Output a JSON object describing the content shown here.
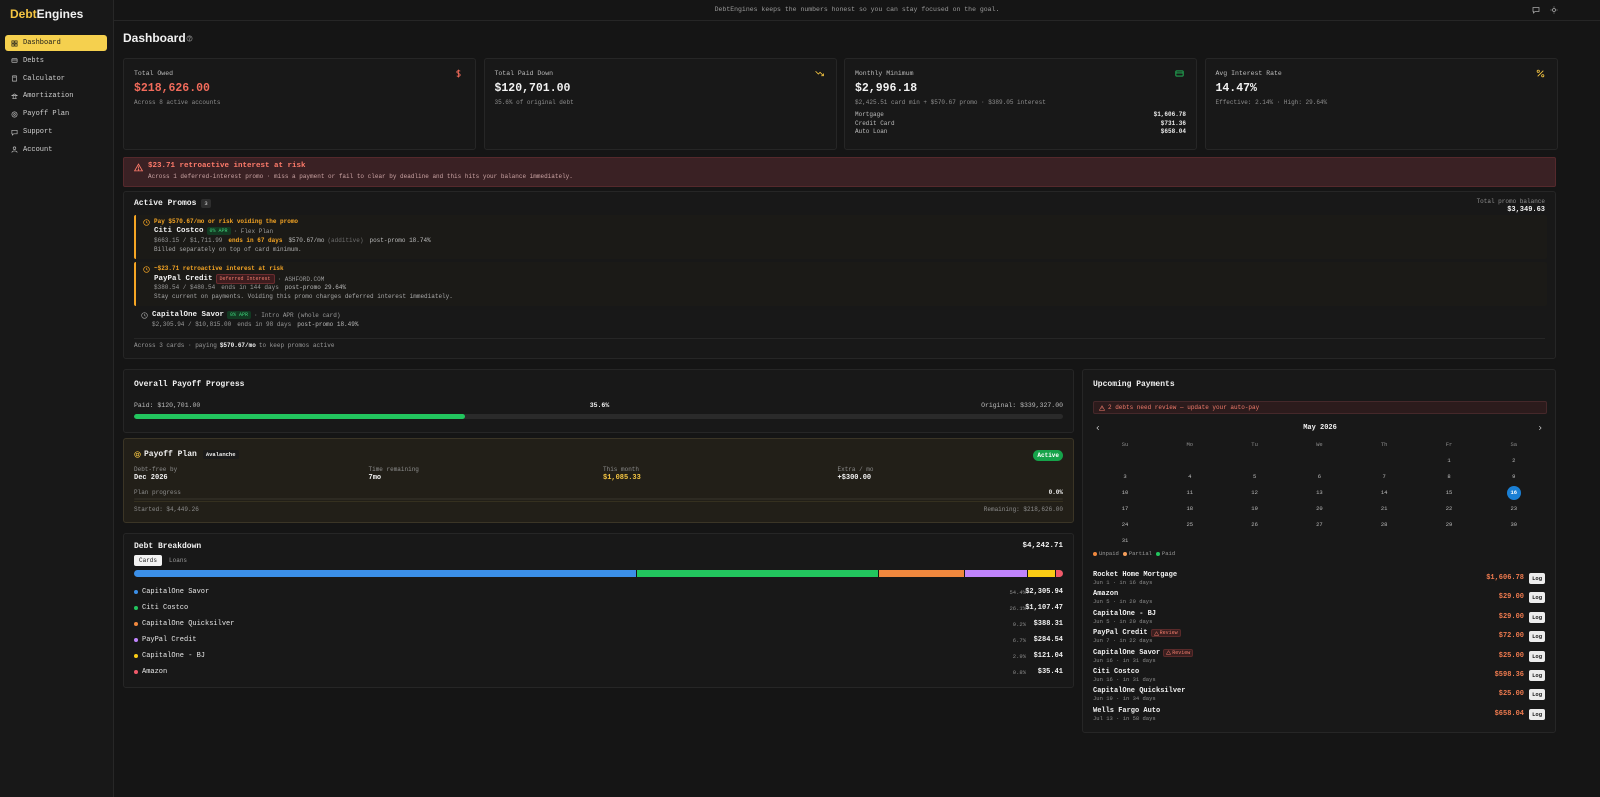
{
  "brand": {
    "first": "Debt",
    "second": "Engines"
  },
  "nav": [
    "Dashboard",
    "Debts",
    "Calculator",
    "Amortization",
    "Payoff Plan",
    "Support",
    "Account"
  ],
  "topbar": "DebtEngines keeps the numbers honest so you can stay focused on the goal.",
  "page_title": "Dashboard",
  "stats": [
    {
      "label": "Total Owed",
      "value": "$218,626.00",
      "sub": "Across 8 active accounts",
      "color": "#f26b5b",
      "icon_color": "#f26b5b"
    },
    {
      "label": "Total Paid Down",
      "value": "$120,701.00",
      "sub": "35.6% of original debt",
      "color": "#f2f2f2",
      "icon_color": "#f5c542"
    },
    {
      "label": "Monthly Minimum",
      "value": "$2,996.18",
      "sub": "$2,425.51 card min + $570.67 promo · $389.05 interest",
      "color": "#f2f2f2",
      "icon_color": "#22c55e",
      "rows": [
        [
          "Mortgage",
          "$1,606.78"
        ],
        [
          "Credit Card",
          "$731.36"
        ],
        [
          "Auto Loan",
          "$658.04"
        ]
      ]
    },
    {
      "label": "Avg Interest Rate",
      "value": "14.47%",
      "sub": "Effective: 2.14% · High: 29.64%",
      "color": "#f2f2f2",
      "icon_color": "#f5c542"
    }
  ],
  "alert": {
    "title": "$23.71 retroactive interest at risk",
    "text": "Across 1 deferred-interest promo · miss a payment or fail to clear by deadline and this hits your balance immediately."
  },
  "promos": {
    "title": "Active Promos",
    "count": 3,
    "balance_label": "Total promo balance",
    "balance": "$3,349.63",
    "items": [
      {
        "warning": "Pay $570.67/mo or risk voiding the promo",
        "name": "Citi Costco",
        "badge": "0% APR",
        "badge_kind": "green",
        "type": "· Flex Plan",
        "balance": "$663.15 / $1,711.99",
        "ends": "ends in 67 days",
        "payment": "$570.67/mo",
        "payment_note": "(additive)",
        "post": "post-promo 18.74%",
        "note": "Billed separately on top of card minimum."
      },
      {
        "warning": "~$23.71 retroactive interest at risk",
        "name": "PayPal Credit",
        "badge": "Deferred Interest",
        "badge_kind": "red",
        "type": "· ASHFORD.COM",
        "balance": "$380.54 / $480.54",
        "ends": "ends in 144 days",
        "post": "post-promo 29.64%",
        "note": "Stay current on payments. Voiding this promo charges deferred interest immediately."
      },
      {
        "name": "CapitalOne Savor",
        "badge": "0% APR",
        "badge_kind": "green",
        "type": "· Intro APR (whole card)",
        "balance": "$2,305.94 / $10,815.00",
        "ends": "ends in 98 days",
        "post": "post-promo 18.49%"
      }
    ],
    "footer": {
      "before": "Across 3 cards · paying",
      "amount": "$570.67/mo",
      "after": "to keep promos active"
    }
  },
  "progress": {
    "title": "Overall Payoff Progress",
    "paid": "Paid: $120,701.00",
    "percent": {
      "value": 35.6,
      "label": "35.6%"
    },
    "original": "Original: $339,327.00"
  },
  "plan": {
    "title": "Payoff Plan",
    "strategy": "Avalanche",
    "status": "Active",
    "fields": [
      {
        "label": "Debt-free by",
        "value": "Dec 2026",
        "color": "#f2f2f2"
      },
      {
        "label": "Time remaining",
        "value": "7mo",
        "color": "#f2f2f2"
      },
      {
        "label": "This month",
        "value": "$1,085.33",
        "color": "#f5c542"
      },
      {
        "label": "Extra / mo",
        "value": "+$300.00",
        "color": "#f2f2f2"
      }
    ],
    "progress_label": "Plan progress",
    "progress": {
      "value": 0,
      "label": "0.0%"
    },
    "started": "Started: $4,449.26",
    "remaining": "Remaining: $218,626.00"
  },
  "breakdown": {
    "title": "Debt Breakdown",
    "total": "$4,242.71",
    "tabs": [
      "Cards",
      "Loans"
    ],
    "active_tab": "Cards",
    "items": [
      {
        "name": "CapitalOne Savor",
        "color": "#3b8fe8",
        "share": 54.4,
        "share_label": "54.4%",
        "amount": "$2,305.94"
      },
      {
        "name": "Citi Costco",
        "color": "#22c55e",
        "share": 26.1,
        "share_label": "26.1%",
        "amount": "$1,107.47"
      },
      {
        "name": "CapitalOne Quicksilver",
        "color": "#f0883e",
        "share": 9.2,
        "share_label": "9.2%",
        "amount": "$388.31"
      },
      {
        "name": "PayPal Credit",
        "color": "#c084fc",
        "share": 6.7,
        "share_label": "6.7%",
        "amount": "$284.54"
      },
      {
        "name": "CapitalOne - BJ",
        "color": "#facc15",
        "share": 2.9,
        "share_label": "2.9%",
        "amount": "$121.04"
      },
      {
        "name": "Amazon",
        "color": "#f05a6a",
        "share": 0.8,
        "share_label": "0.8%",
        "amount": "$35.41"
      }
    ]
  },
  "upcoming": {
    "title": "Upcoming Payments",
    "warning": "2 debts need review — update your auto-pay",
    "month": "May 2026",
    "weekdays": [
      "Su",
      "Mo",
      "Tu",
      "We",
      "Th",
      "Fr",
      "Sa"
    ],
    "weeks": [
      [
        null,
        null,
        null,
        null,
        null,
        1,
        2
      ],
      [
        3,
        4,
        5,
        6,
        7,
        8,
        9
      ],
      [
        10,
        11,
        12,
        13,
        14,
        15,
        16
      ],
      [
        17,
        18,
        19,
        20,
        21,
        22,
        23
      ],
      [
        24,
        25,
        26,
        27,
        28,
        29,
        30
      ],
      [
        31,
        null,
        null,
        null,
        null,
        null,
        null
      ]
    ],
    "today": 16,
    "legend": [
      {
        "name": "Unpaid",
        "color": "#f0883e"
      },
      {
        "name": "Partial",
        "color": "#f59e5b"
      },
      {
        "name": "Paid",
        "color": "#22c55e"
      }
    ],
    "review_label": "Review",
    "log_label": "Log",
    "payments": [
      {
        "name": "Rocket Home Mortgage",
        "due": "Jun 1 · in 16 days",
        "amount": "$1,606.78",
        "review": false
      },
      {
        "name": "Amazon",
        "due": "Jun 5 · in 20 days",
        "amount": "$29.00",
        "review": false
      },
      {
        "name": "CapitalOne - BJ",
        "due": "Jun 5 · in 20 days",
        "amount": "$29.00",
        "review": false
      },
      {
        "name": "PayPal Credit",
        "due": "Jun 7 · in 22 days",
        "amount": "$72.00",
        "review": true
      },
      {
        "name": "CapitalOne Savor",
        "due": "Jun 16 · in 31 days",
        "amount": "$25.00",
        "review": true
      },
      {
        "name": "Citi Costco",
        "due": "Jun 16 · in 31 days",
        "amount": "$598.36",
        "review": false
      },
      {
        "name": "CapitalOne Quicksilver",
        "due": "Jun 19 · in 34 days",
        "amount": "$25.00",
        "review": false
      },
      {
        "name": "Wells Fargo Auto",
        "due": "Jul 13 · in 58 days",
        "amount": "$658.04",
        "review": false
      }
    ]
  }
}
